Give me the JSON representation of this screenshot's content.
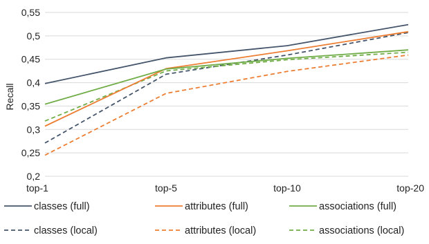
{
  "chart_data": {
    "type": "line",
    "title": "",
    "xlabel": "",
    "ylabel": "Recall",
    "categories": [
      "top-1",
      "top-5",
      "top-10",
      "top-20"
    ],
    "ylim": [
      0.2,
      0.55
    ],
    "yticks": [
      "0,2",
      "0,25",
      "0,3",
      "0,35",
      "0,4",
      "0,45",
      "0,5",
      "0,55"
    ],
    "grid": true,
    "legend_position": "bottom",
    "series": [
      {
        "name": "classes (full)",
        "color": "#44546a",
        "dash": "solid",
        "values": [
          0.398,
          0.453,
          0.479,
          0.524
        ]
      },
      {
        "name": "attributes (full)",
        "color": "#ed7d31",
        "dash": "solid",
        "values": [
          0.307,
          0.43,
          0.468,
          0.509
        ]
      },
      {
        "name": "associations (full)",
        "color": "#70ad47",
        "dash": "solid",
        "values": [
          0.354,
          0.429,
          0.452,
          0.47
        ]
      },
      {
        "name": "classes (local)",
        "color": "#44546a",
        "dash": "dashed",
        "values": [
          0.271,
          0.418,
          0.459,
          0.507
        ]
      },
      {
        "name": "attributes (local)",
        "color": "#ed7d31",
        "dash": "dashed",
        "values": [
          0.245,
          0.377,
          0.424,
          0.459
        ]
      },
      {
        "name": "associations (local)",
        "color": "#70ad47",
        "dash": "dashed",
        "values": [
          0.318,
          0.425,
          0.449,
          0.465
        ]
      }
    ]
  }
}
